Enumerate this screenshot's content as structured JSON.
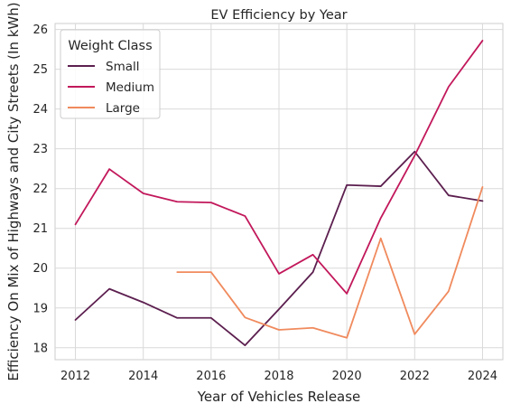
{
  "chart_data": {
    "type": "line",
    "title": "EV Efficiency by Year",
    "xlabel": "Year of Vehicles Release",
    "ylabel": "Efficiency On Mix of Highways and City Streets (In kWh)",
    "xlim": [
      2011.4,
      2024.6
    ],
    "ylim": [
      17.7,
      26.15
    ],
    "x_ticks": [
      2012,
      2014,
      2016,
      2018,
      2020,
      2022,
      2024
    ],
    "y_ticks": [
      18,
      19,
      20,
      21,
      22,
      23,
      24,
      25,
      26
    ],
    "grid": true,
    "legend": {
      "title": "Weight Class",
      "placement": "top-left"
    },
    "series": [
      {
        "name": "Small",
        "color": "#5c1f4f",
        "points": [
          [
            2012,
            18.7
          ],
          [
            2013,
            19.48
          ],
          [
            2014,
            19.14
          ],
          [
            2015,
            18.75
          ],
          [
            2016,
            18.75
          ],
          [
            2017,
            18.06
          ],
          [
            2018,
            18.97
          ],
          [
            2019,
            19.9
          ],
          [
            2020,
            22.09
          ],
          [
            2021,
            22.06
          ],
          [
            2022,
            22.93
          ],
          [
            2023,
            21.83
          ],
          [
            2024,
            21.69
          ]
        ]
      },
      {
        "name": "Medium",
        "color": "#c2185b",
        "points": [
          [
            2012,
            21.1
          ],
          [
            2013,
            22.49
          ],
          [
            2014,
            21.88
          ],
          [
            2015,
            21.67
          ],
          [
            2016,
            21.65
          ],
          [
            2017,
            21.31
          ],
          [
            2018,
            19.86
          ],
          [
            2019,
            20.34
          ],
          [
            2020,
            19.36
          ],
          [
            2021,
            21.26
          ],
          [
            2022,
            22.83
          ],
          [
            2023,
            24.56
          ],
          [
            2024,
            25.72
          ]
        ]
      },
      {
        "name": "Large",
        "color": "#f08a5d",
        "points": [
          [
            2015,
            19.9
          ],
          [
            2016,
            19.9
          ],
          [
            2017,
            18.76
          ],
          [
            2018,
            18.45
          ],
          [
            2019,
            18.5
          ],
          [
            2020,
            18.25
          ],
          [
            2021,
            20.75
          ],
          [
            2022,
            18.34
          ],
          [
            2023,
            19.42
          ],
          [
            2024,
            22.04
          ]
        ]
      }
    ]
  }
}
